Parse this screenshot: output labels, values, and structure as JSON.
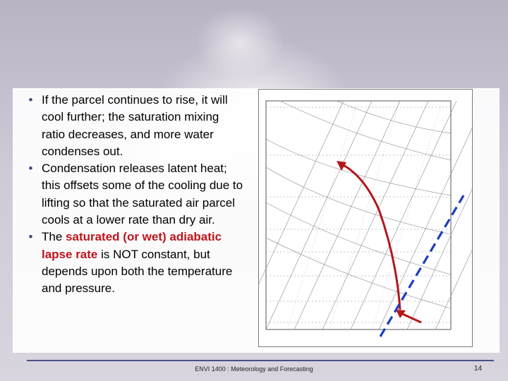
{
  "bullets": [
    {
      "segments": [
        {
          "text": "If the parcel continues to rise, it will cool further; the saturation mixing ratio decreases, and more water condenses out.",
          "highlight": false
        }
      ]
    },
    {
      "segments": [
        {
          "text": "Condensation releases latent heat; this offsets some of the cooling due to lifting so that the saturated air parcel cools at a lower rate than dry air.",
          "highlight": false
        }
      ]
    },
    {
      "segments": [
        {
          "text": "The ",
          "highlight": false
        },
        {
          "text": "saturated (or wet) adiabatic lapse rate",
          "highlight": true
        },
        {
          "text": " is NOT constant, but depends upon both the temperature and pressure.",
          "highlight": false
        }
      ]
    }
  ],
  "bullet_glyph": "•",
  "footer": {
    "text": "ENVI 1400 : Meteorology and Forecasting",
    "page_number": "14"
  },
  "colors": {
    "highlight": "#c0141c",
    "dry_adiabat": "#1a3fbf",
    "moist_adiabat": "#b3171c",
    "footer_rule": "#4a4f86"
  }
}
